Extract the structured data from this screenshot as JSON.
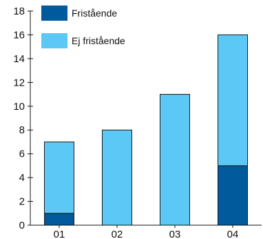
{
  "chart_data": {
    "type": "bar",
    "stacked": true,
    "categories": [
      "01",
      "02",
      "03",
      "04"
    ],
    "series": [
      {
        "name": "Fristående",
        "color": "#005a9c",
        "values": [
          1,
          0,
          0,
          5
        ]
      },
      {
        "name": "Ej fristående",
        "color": "#5bc8f5",
        "values": [
          6,
          8,
          11,
          11
        ]
      }
    ],
    "ylim": [
      0,
      18
    ],
    "yticks": [
      0,
      2,
      4,
      6,
      8,
      10,
      12,
      14,
      16,
      18
    ],
    "grid": false,
    "legend": "top-left",
    "xlabel": "",
    "ylabel": "",
    "title": ""
  }
}
